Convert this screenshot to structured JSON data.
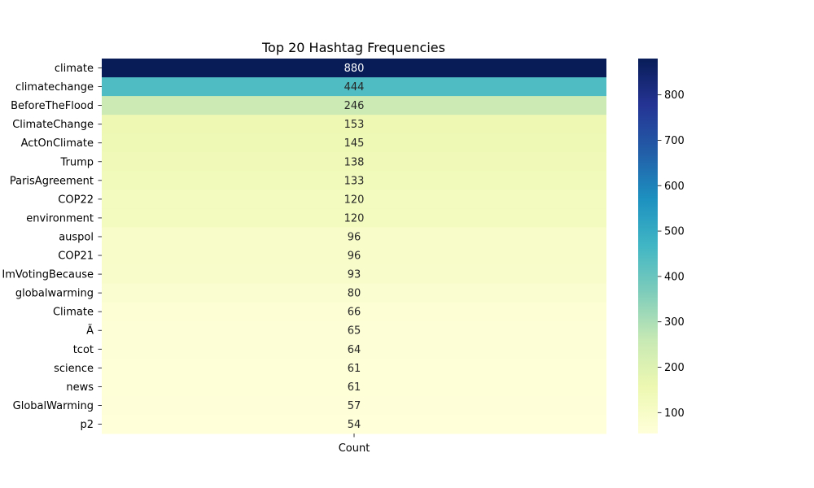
{
  "chart_data": {
    "type": "heatmap",
    "title": "Top 20 Hashtag Frequencies",
    "xlabel": "",
    "ylabel": "",
    "x_categories": [
      "Count"
    ],
    "y_categories": [
      "climate",
      "climatechange",
      "BeforeTheFlood",
      "ClimateChange",
      "ActOnClimate",
      "Trump",
      "ParisAgreement",
      "COP22",
      "environment",
      "auspol",
      "COP21",
      "ImVotingBecause",
      "globalwarming",
      "Climate",
      "Ã",
      "tcot",
      "science",
      "news",
      "GlobalWarming",
      "p2"
    ],
    "values": [
      880,
      444,
      246,
      153,
      145,
      138,
      133,
      120,
      120,
      96,
      96,
      93,
      80,
      66,
      65,
      64,
      61,
      61,
      57,
      54
    ],
    "colormap": "YlGnBu",
    "vmin": 54,
    "vmax": 880,
    "colorbar_ticks": [
      100,
      200,
      300,
      400,
      500,
      600,
      700,
      800
    ],
    "annotated": true,
    "grid": false
  }
}
